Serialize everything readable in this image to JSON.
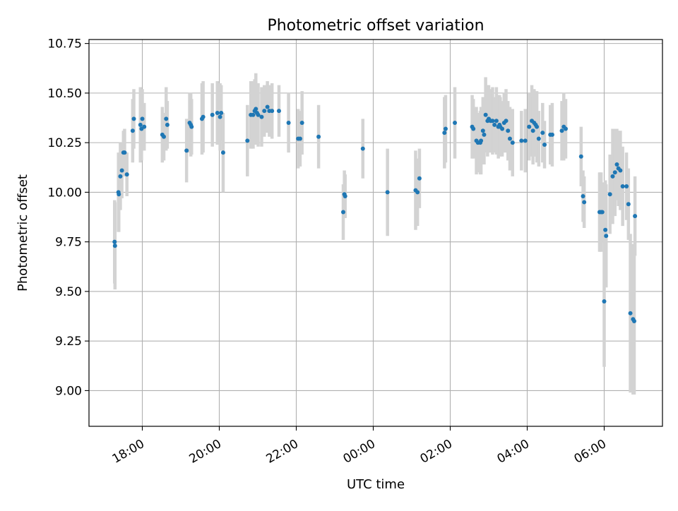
{
  "chart_data": {
    "type": "scatter",
    "title": "Photometric offset variation",
    "xlabel": "UTC time",
    "ylabel": "Photometric offset",
    "x_unit": "hours",
    "x_ticks": [
      "18:00",
      "20:00",
      "22:00",
      "00:00",
      "02:00",
      "04:00",
      "06:00"
    ],
    "y_ticks": [
      "9.00",
      "9.25",
      "9.50",
      "9.75",
      "10.00",
      "10.25",
      "10.50",
      "10.75"
    ],
    "ylim": [
      8.82,
      10.77
    ],
    "grid": true,
    "colors": {
      "point": "#1f77b4",
      "errorbar": "#d3d3d3",
      "grid": "#b0b0b0"
    },
    "series": [
      {
        "x": [
          -6.72,
          -6.71,
          -6.62,
          -6.61,
          -6.57,
          -6.53,
          -6.49,
          -6.46,
          -6.4,
          -6.25,
          -6.22,
          -6.05,
          -6.0,
          -6.02,
          -5.95,
          -5.48,
          -5.44,
          -5.38,
          -5.35,
          -4.85,
          -4.77,
          -4.74,
          -4.72,
          -4.45,
          -4.42,
          -4.18,
          -4.05,
          -3.98,
          -3.95,
          -3.9,
          -3.27,
          -3.18,
          -3.12,
          -3.08,
          -3.05,
          -3.02,
          -2.99,
          -2.9,
          -2.83,
          -2.75,
          -2.7,
          -2.63,
          -2.45,
          -2.2,
          -1.95,
          -1.9,
          -1.85,
          -1.42,
          -0.78,
          -0.75,
          -0.73,
          -0.27,
          0.37,
          1.1,
          1.15,
          1.2,
          1.85,
          1.88,
          2.12,
          2.57,
          2.6,
          2.68,
          2.72,
          2.78,
          2.8,
          2.85,
          2.88,
          2.92,
          2.97,
          3.0,
          3.05,
          3.1,
          3.15,
          3.2,
          3.25,
          3.28,
          3.3,
          3.35,
          3.4,
          3.45,
          3.5,
          3.55,
          3.62,
          3.85,
          3.95,
          4.05,
          4.12,
          4.15,
          4.18,
          4.22,
          4.25,
          4.3,
          4.4,
          4.45,
          4.6,
          4.65,
          4.9,
          4.95,
          5.0,
          5.4,
          5.45,
          5.48,
          5.88,
          5.92,
          5.95,
          6.0,
          6.03,
          6.05,
          6.15,
          6.22,
          6.28,
          6.33,
          6.37,
          6.42,
          6.48,
          6.58,
          6.63,
          6.68,
          6.75,
          6.78,
          6.8
        ],
        "y": [
          9.75,
          9.73,
          10.0,
          9.99,
          10.08,
          10.11,
          10.2,
          10.2,
          10.09,
          10.31,
          10.37,
          10.34,
          10.37,
          10.32,
          10.33,
          10.29,
          10.28,
          10.37,
          10.34,
          10.21,
          10.35,
          10.34,
          10.33,
          10.37,
          10.38,
          10.39,
          10.4,
          10.38,
          10.4,
          10.2,
          10.26,
          10.39,
          10.39,
          10.41,
          10.42,
          10.4,
          10.39,
          10.38,
          10.41,
          10.43,
          10.41,
          10.41,
          10.41,
          10.35,
          10.27,
          10.27,
          10.35,
          10.28,
          9.9,
          9.99,
          9.98,
          10.22,
          10.0,
          10.01,
          10.0,
          10.07,
          10.3,
          10.32,
          10.35,
          10.33,
          10.32,
          10.26,
          10.25,
          10.25,
          10.26,
          10.31,
          10.29,
          10.39,
          10.36,
          10.37,
          10.36,
          10.36,
          10.34,
          10.36,
          10.33,
          10.34,
          10.33,
          10.32,
          10.35,
          10.36,
          10.31,
          10.27,
          10.25,
          10.26,
          10.26,
          10.33,
          10.36,
          10.31,
          10.35,
          10.34,
          10.33,
          10.27,
          10.3,
          10.24,
          10.29,
          10.29,
          10.31,
          10.33,
          10.32,
          10.18,
          9.98,
          9.95,
          9.9,
          9.9,
          9.9,
          9.45,
          9.81,
          9.78,
          9.99,
          10.08,
          10.1,
          10.14,
          10.12,
          10.11,
          10.03,
          10.03,
          9.94,
          9.39,
          9.36,
          9.35,
          9.88
        ],
        "yerr": [
          0.21,
          0.22,
          0.2,
          0.19,
          0.17,
          0.14,
          0.11,
          0.12,
          0.11,
          0.16,
          0.15,
          0.19,
          0.15,
          0.16,
          0.12,
          0.14,
          0.12,
          0.16,
          0.12,
          0.16,
          0.15,
          0.16,
          0.14,
          0.18,
          0.18,
          0.16,
          0.16,
          0.17,
          0.14,
          0.2,
          0.18,
          0.17,
          0.17,
          0.16,
          0.18,
          0.15,
          0.16,
          0.15,
          0.13,
          0.13,
          0.13,
          0.14,
          0.13,
          0.15,
          0.15,
          0.14,
          0.16,
          0.16,
          0.14,
          0.12,
          0.11,
          0.15,
          0.22,
          0.2,
          0.17,
          0.15,
          0.18,
          0.17,
          0.18,
          0.16,
          0.15,
          0.17,
          0.15,
          0.16,
          0.17,
          0.17,
          0.15,
          0.19,
          0.18,
          0.17,
          0.16,
          0.17,
          0.14,
          0.17,
          0.16,
          0.15,
          0.15,
          0.14,
          0.15,
          0.16,
          0.15,
          0.16,
          0.17,
          0.15,
          0.16,
          0.17,
          0.18,
          0.17,
          0.17,
          0.16,
          0.18,
          0.14,
          0.15,
          0.12,
          0.15,
          0.16,
          0.15,
          0.17,
          0.15,
          0.15,
          0.13,
          0.13,
          0.2,
          0.2,
          0.15,
          0.33,
          0.25,
          0.26,
          0.2,
          0.24,
          0.22,
          0.18,
          0.19,
          0.2,
          0.2,
          0.17,
          0.18,
          0.4,
          0.38,
          0.37,
          0.2
        ]
      }
    ]
  }
}
